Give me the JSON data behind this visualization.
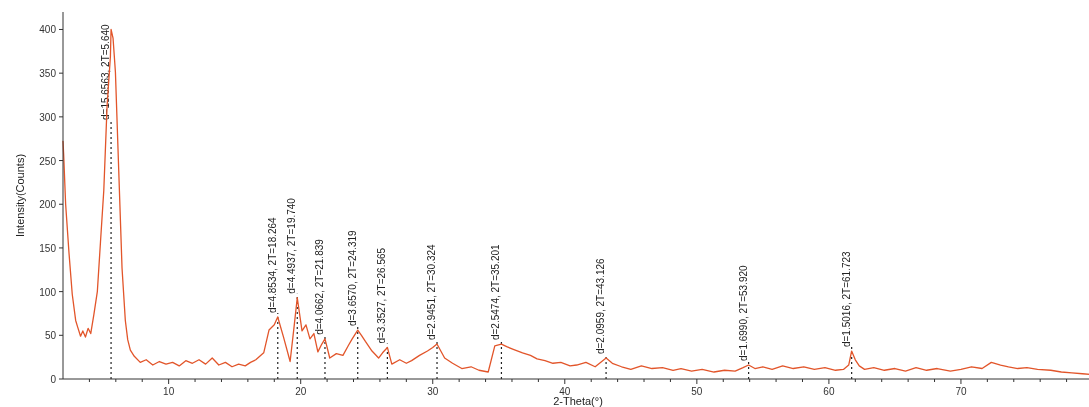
{
  "chart_data": {
    "type": "line",
    "xlabel": "2-Theta(°)",
    "ylabel": "Intensity(Counts)",
    "xlim": [
      2,
      80
    ],
    "ylim": [
      0,
      420
    ],
    "xticks": [
      {
        "value": 4,
        "label": null
      },
      {
        "value": 6,
        "label": null
      },
      {
        "value": 8,
        "label": null
      },
      10,
      {
        "value": 12,
        "label": null
      },
      {
        "value": 14,
        "label": null
      },
      {
        "value": 16,
        "label": null
      },
      {
        "value": 18,
        "label": null
      },
      20,
      {
        "value": 22,
        "label": null
      },
      {
        "value": 24,
        "label": null
      },
      {
        "value": 26,
        "label": null
      },
      {
        "value": 28,
        "label": null
      },
      30,
      {
        "value": 32,
        "label": null
      },
      {
        "value": 34,
        "label": null
      },
      {
        "value": 36,
        "label": null
      },
      {
        "value": 38,
        "label": null
      },
      40,
      {
        "value": 42,
        "label": null
      },
      {
        "value": 44,
        "label": null
      },
      {
        "value": 46,
        "label": null
      },
      {
        "value": 48,
        "label": null
      },
      50,
      {
        "value": 52,
        "label": null
      },
      {
        "value": 54,
        "label": null
      },
      {
        "value": 56,
        "label": null
      },
      {
        "value": 58,
        "label": null
      },
      60,
      {
        "value": 62,
        "label": null
      },
      {
        "value": 64,
        "label": null
      },
      {
        "value": 66,
        "label": null
      },
      {
        "value": 68,
        "label": null
      },
      70,
      {
        "value": 72,
        "label": null
      },
      {
        "value": 74,
        "label": null
      },
      {
        "value": 76,
        "label": null
      },
      {
        "value": 78,
        "label": null
      }
    ],
    "yticks": [
      0,
      50,
      100,
      150,
      200,
      250,
      300,
      350,
      400
    ],
    "grid": false,
    "marker": "none",
    "line_style": "solid",
    "series": [
      {
        "color": "#e2552a",
        "x": [
          2.0,
          2.05,
          2.2,
          2.45,
          2.7,
          2.96,
          3.1,
          3.33,
          3.5,
          3.7,
          3.9,
          4.1,
          4.34,
          4.6,
          4.84,
          5.09,
          5.34,
          5.59,
          5.64,
          5.79,
          5.97,
          6.22,
          6.47,
          6.72,
          6.9,
          7.1,
          7.4,
          7.85,
          8.3,
          8.8,
          9.3,
          9.8,
          10.3,
          10.8,
          11.3,
          11.8,
          12.3,
          12.8,
          13.3,
          13.8,
          14.3,
          14.8,
          15.3,
          15.8,
          16.2,
          16.6,
          17.2,
          17.6,
          18.0,
          18.26,
          18.7,
          19.2,
          19.5,
          19.74,
          20.1,
          20.4,
          20.7,
          21.0,
          21.3,
          21.6,
          21.84,
          22.2,
          22.7,
          23.2,
          23.6,
          23.9,
          24.32,
          24.6,
          24.9,
          25.4,
          25.9,
          26.2,
          26.57,
          26.9,
          27.5,
          28.0,
          28.4,
          29.0,
          29.6,
          30.0,
          30.32,
          30.9,
          31.5,
          32.2,
          32.9,
          33.5,
          34.2,
          34.7,
          35.2,
          35.6,
          36.1,
          36.8,
          37.4,
          37.9,
          38.5,
          39.1,
          39.7,
          40.4,
          40.9,
          41.6,
          42.3,
          43.13,
          43.6,
          44.3,
          45.0,
          45.8,
          46.6,
          47.4,
          48.2,
          48.8,
          49.6,
          50.4,
          51.3,
          52.1,
          52.9,
          53.5,
          53.92,
          54.4,
          55.0,
          55.7,
          56.5,
          57.3,
          58.1,
          58.9,
          59.7,
          60.5,
          61.1,
          61.5,
          61.72,
          62.0,
          62.3,
          62.7,
          63.4,
          64.2,
          65.0,
          65.8,
          66.6,
          67.4,
          68.2,
          69.2,
          70.0,
          70.8,
          71.6,
          72.3,
          73.0,
          73.6,
          74.3,
          75.0,
          75.8,
          76.8,
          77.6,
          78.4,
          79.2,
          80.0
        ],
        "values": [
          272,
          257,
          200,
          145,
          97,
          67,
          60,
          49,
          55,
          48,
          58,
          52,
          74,
          100,
          157,
          216,
          313,
          369,
          400,
          390,
          351,
          239,
          127,
          67,
          45,
          33,
          26,
          19,
          22,
          16,
          20,
          17,
          19,
          15,
          21,
          18,
          22,
          17,
          24,
          16,
          19,
          14,
          17,
          15,
          19,
          22,
          30,
          56,
          62,
          71,
          48,
          20,
          60,
          93,
          55,
          62,
          46,
          52,
          31,
          40,
          46,
          24,
          29,
          27,
          38,
          46,
          56,
          50,
          43,
          32,
          24,
          30,
          36,
          17,
          22,
          18,
          21,
          27,
          32,
          36,
          40,
          24,
          18,
          12,
          14,
          10,
          8,
          38,
          40,
          37,
          34,
          30,
          27,
          23,
          21,
          18,
          19,
          15,
          16,
          19,
          14,
          24,
          18,
          14,
          11,
          15,
          12,
          13,
          10,
          12,
          9,
          11,
          8,
          10,
          9,
          13,
          16,
          12,
          14,
          11,
          15,
          12,
          14,
          11,
          13,
          10,
          11,
          16,
          32,
          22,
          15,
          11,
          13,
          10,
          12,
          9,
          13,
          10,
          12,
          9,
          11,
          14,
          12,
          19,
          16,
          14,
          12,
          13,
          11,
          10,
          8,
          7,
          6,
          5
        ]
      }
    ],
    "ref_lines": [
      {
        "axis": "x",
        "value": 5.64,
        "label": "d=15.6563, 2T=5.640",
        "line_style": "dotted"
      },
      {
        "axis": "x",
        "value": 18.264,
        "label": "d=4.8534, 2T=18.264",
        "line_style": "dotted"
      },
      {
        "axis": "x",
        "value": 19.74,
        "label": "d=4.4937, 2T=19.740",
        "line_style": "dotted"
      },
      {
        "axis": "x",
        "value": 21.839,
        "label": "d=4.0662, 2T=21.839",
        "line_style": "dotted"
      },
      {
        "axis": "x",
        "value": 24.319,
        "label": "d=3.6570, 2T=24.319",
        "line_style": "dotted"
      },
      {
        "axis": "x",
        "value": 26.565,
        "label": "d=3.3527, 2T=26.565",
        "line_style": "dotted"
      },
      {
        "axis": "x",
        "value": 30.324,
        "label": "d=2.9451, 2T=30.324",
        "line_style": "dotted"
      },
      {
        "axis": "x",
        "value": 35.201,
        "label": "d=2.5474, 2T=35.201",
        "line_style": "dotted"
      },
      {
        "axis": "x",
        "value": 43.126,
        "label": "d=2.0959, 2T=43.126",
        "line_style": "dotted"
      },
      {
        "axis": "x",
        "value": 53.92,
        "label": "d=1.6990, 2T=53.920",
        "line_style": "dotted"
      },
      {
        "axis": "x",
        "value": 61.723,
        "label": "d=1.5016, 2T=61.723",
        "line_style": "dotted"
      }
    ]
  }
}
